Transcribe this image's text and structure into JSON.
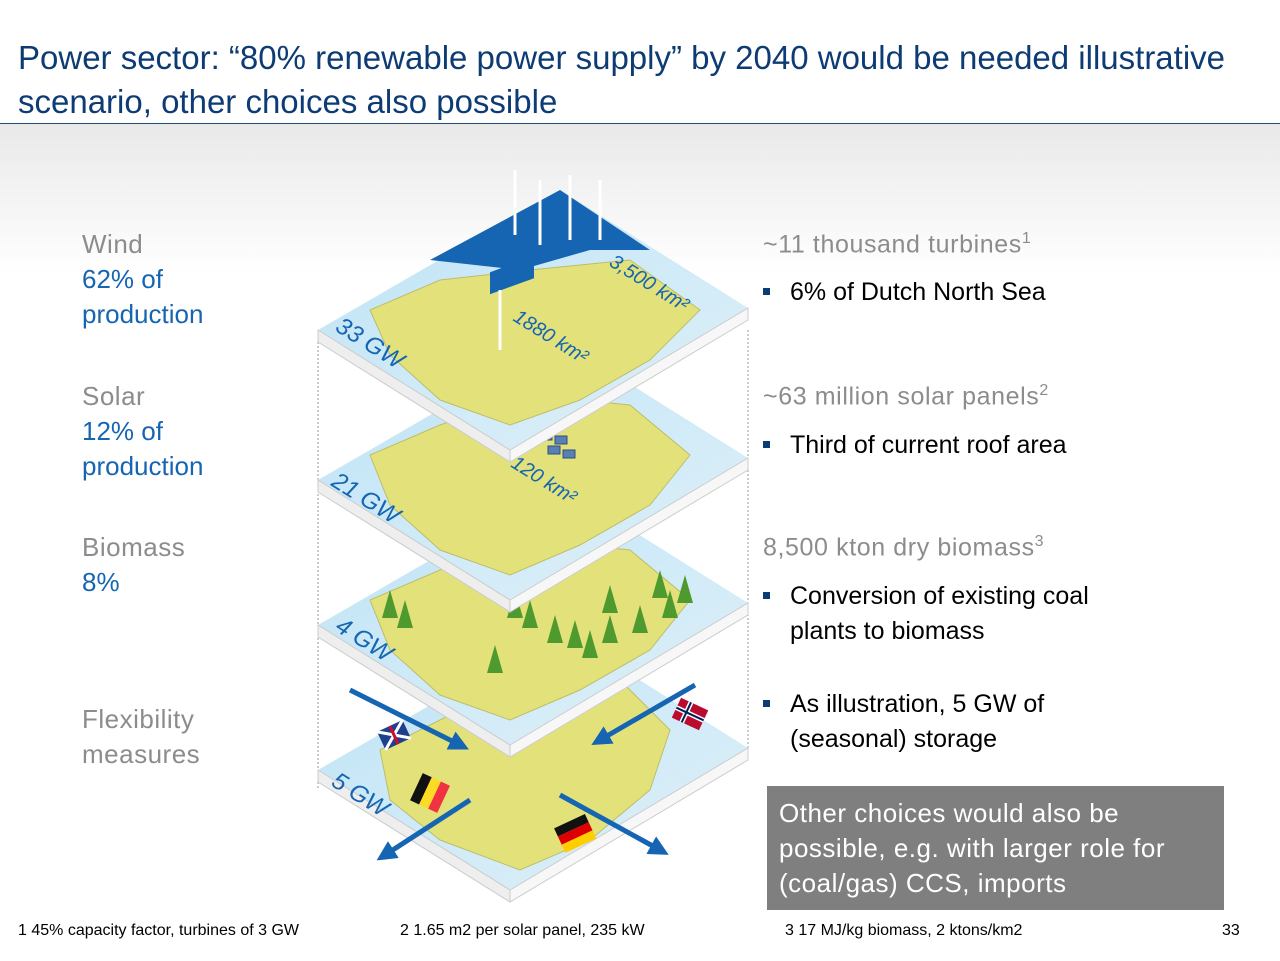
{
  "title": "Power sector: “80% renewable power supply” by 2040 would be needed illustrative scenario, other choices also possible",
  "left_labels": [
    {
      "head": "Wind",
      "sub": "62% of\nproduction"
    },
    {
      "head": "Solar",
      "sub": "12% of\nproduction"
    },
    {
      "head": "Biomass",
      "sub": "8%"
    },
    {
      "head": "Flexibility\nmeasures",
      "sub": ""
    }
  ],
  "layers": {
    "wind": {
      "capacity": "33 GW",
      "area_offshore": "3,500 km²",
      "area_onshore": "1880 km²"
    },
    "solar": {
      "capacity": "21 GW",
      "area": "~120 km²"
    },
    "biomass": {
      "capacity": "4 GW"
    },
    "flex": {
      "capacity": "5 GW"
    }
  },
  "right": [
    {
      "head": "~11 thousand turbines",
      "sup": "1",
      "bullets": [
        "6% of Dutch North Sea"
      ]
    },
    {
      "head": "~63 million solar panels",
      "sup": "2",
      "bullets": [
        "Third of current roof area"
      ]
    },
    {
      "head": "8,500 kton dry biomass",
      "sup": "3",
      "bullets": [
        "Conversion of existing coal\nplants to biomass",
        "As illustration, 5 GW of\n(seasonal) storage"
      ]
    }
  ],
  "note_box": "Other choices would also be possible, e.g. with larger role for (coal/gas) CCS, imports",
  "footnotes": [
    "1 45% capacity factor, turbines of 3 GW",
    "2 1.65 m2 per solar panel, 235 kW",
    "3 17 MJ/kg biomass, 2 ktons/km2"
  ],
  "page_number": "33",
  "colors": {
    "title": "#0d3b73",
    "accent": "#1565b3",
    "land": "#e3e27a",
    "sea": "#cde9f6",
    "gray": "#8c8c8c"
  }
}
